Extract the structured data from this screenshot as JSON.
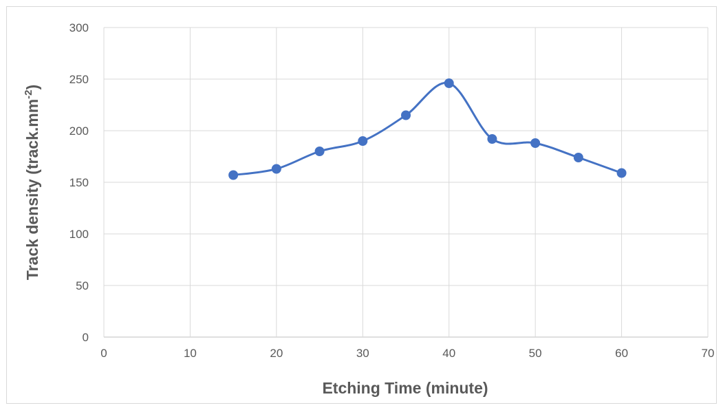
{
  "chart_data": {
    "type": "scatter",
    "title": "",
    "xlabel": "Etching Time (minute)",
    "ylabel_main": "Track density (track.mm",
    "ylabel_sup": "-2",
    "ylabel_tail": ")",
    "xlim": [
      0,
      70
    ],
    "ylim": [
      0,
      300
    ],
    "x_ticks": [
      0,
      10,
      20,
      30,
      40,
      50,
      60,
      70
    ],
    "y_ticks": [
      0,
      50,
      100,
      150,
      200,
      250,
      300
    ],
    "grid": true,
    "legend": "none",
    "smooth_line": true,
    "series": [
      {
        "color": "#4472c4",
        "x": [
          15,
          20,
          25,
          30,
          35,
          40,
          45,
          50,
          55,
          60
        ],
        "y": [
          157,
          163,
          180,
          190,
          215,
          246,
          192,
          188,
          174,
          159
        ]
      }
    ]
  }
}
